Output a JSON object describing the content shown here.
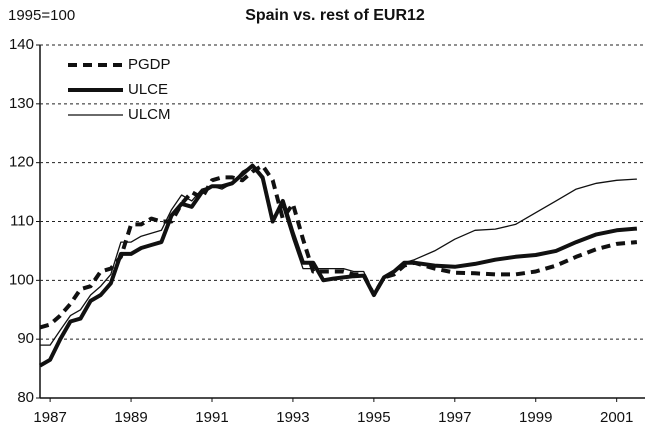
{
  "chart_data": {
    "type": "line",
    "title": "Spain vs. rest of EUR12",
    "subtitle": "1995=100",
    "x": [
      1986.75,
      1987,
      1987.25,
      1987.5,
      1987.75,
      1988,
      1988.25,
      1988.5,
      1988.75,
      1989,
      1989.25,
      1989.5,
      1989.75,
      1990,
      1990.25,
      1990.5,
      1990.75,
      1991,
      1991.25,
      1991.5,
      1991.75,
      1992,
      1992.25,
      1992.5,
      1992.75,
      1993,
      1993.25,
      1993.5,
      1993.75,
      1994,
      1994.25,
      1994.5,
      1994.75,
      1995,
      1995.25,
      1995.5,
      1995.75,
      1996,
      1996.5,
      1997,
      1997.5,
      1998,
      1998.5,
      1999,
      1999.5,
      2000,
      2000.5,
      2001,
      2001.5
    ],
    "series": [
      {
        "name": "PGDP",
        "color": "#111111",
        "style": "dashed",
        "values": [
          92,
          92.5,
          94,
          96,
          98.5,
          99,
          101.5,
          102,
          104,
          109.5,
          109.5,
          110.5,
          110,
          110,
          113,
          115,
          114,
          117,
          117.5,
          117.5,
          117,
          118.5,
          119.5,
          117,
          110.5,
          113,
          107,
          101.5,
          101.5,
          101.5,
          101.5,
          101,
          101,
          97.5,
          100.5,
          101,
          102.5,
          103,
          102,
          101.3,
          101.2,
          101,
          101,
          101.5,
          102.5,
          104,
          105.3,
          106.2,
          106.5
        ]
      },
      {
        "name": "ULCE",
        "color": "#111111",
        "style": "thick",
        "values": [
          85.5,
          86.5,
          90,
          93,
          93.5,
          96.5,
          97.5,
          99.5,
          104.5,
          104.5,
          105.5,
          106,
          106.5,
          111,
          113,
          112.5,
          115,
          116,
          116,
          116.5,
          118,
          119.5,
          117.5,
          110,
          113.5,
          108,
          103,
          103,
          100,
          100.3,
          100.5,
          100.7,
          100.8,
          97.5,
          100.5,
          101.5,
          103,
          103,
          102.5,
          102.3,
          102.8,
          103.5,
          104,
          104.3,
          105,
          106.5,
          107.8,
          108.5,
          108.8
        ]
      },
      {
        "name": "ULCM",
        "color": "#111111",
        "style": "thin",
        "values": [
          89,
          89,
          91.5,
          94,
          95,
          97.5,
          99,
          101,
          106.5,
          106.5,
          107.5,
          108,
          108.5,
          112,
          114.5,
          113.5,
          115.5,
          116,
          115.5,
          116.5,
          118.5,
          119.5,
          117,
          110.5,
          112.5,
          107,
          102,
          102,
          102,
          102,
          102,
          101.5,
          101.5,
          97.5,
          100.5,
          101.5,
          103,
          103.5,
          105,
          107,
          108.5,
          108.7,
          109.5,
          111.5,
          113.5,
          115.5,
          116.5,
          117,
          117.2
        ]
      }
    ],
    "xlim": [
      1986.75,
      2001.7
    ],
    "xticks": [
      1987,
      1989,
      1991,
      1993,
      1995,
      1997,
      1999,
      2001
    ],
    "ylim": [
      80,
      140
    ],
    "yticks": [
      80,
      90,
      100,
      110,
      120,
      130,
      140
    ],
    "grid": true,
    "legend": "top-left"
  }
}
